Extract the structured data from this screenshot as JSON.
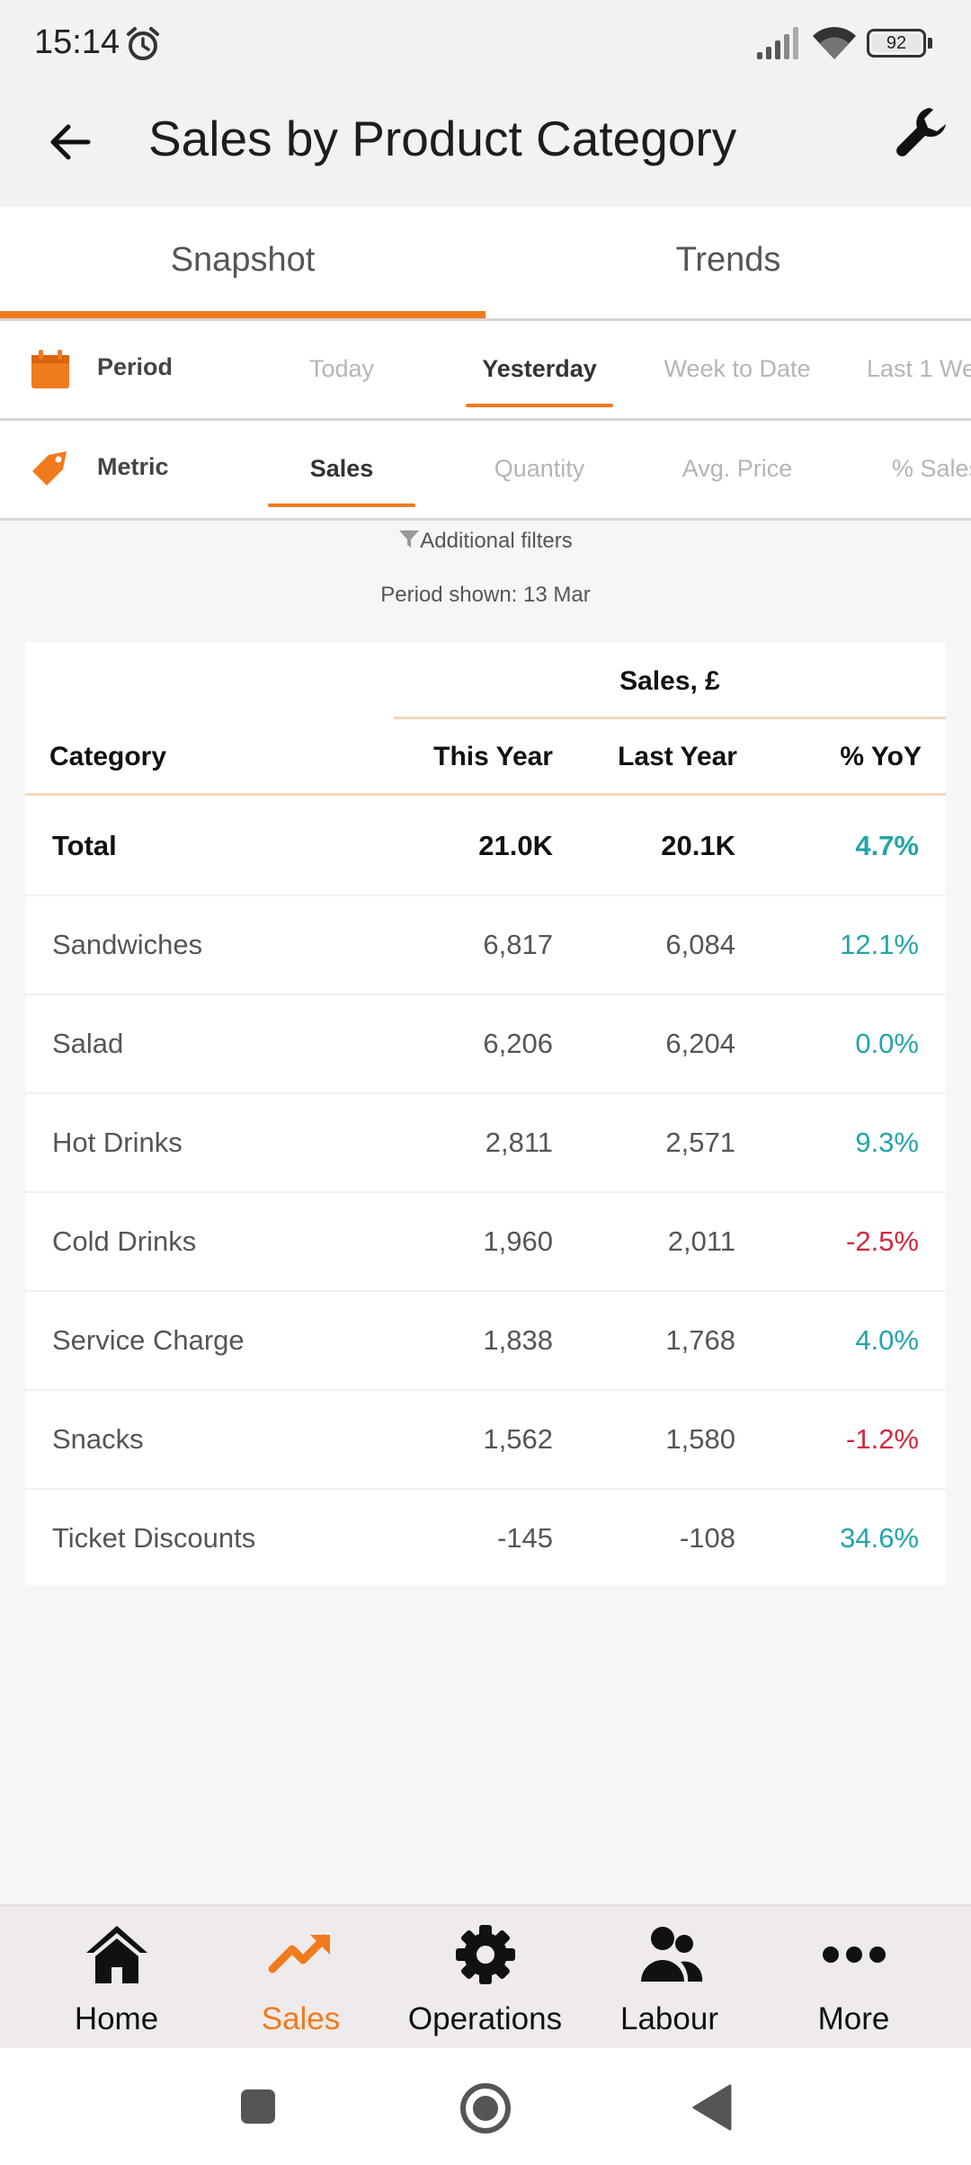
{
  "status_bar": {
    "time": "15:14",
    "battery": "92"
  },
  "app_bar": {
    "title": "Sales by Product Category"
  },
  "tabs": [
    {
      "label": "Snapshot",
      "active": true
    },
    {
      "label": "Trends",
      "active": false
    }
  ],
  "period_filter": {
    "label": "Period",
    "options": [
      "Today",
      "Yesterday",
      "Week to Date",
      "Last 1 We"
    ],
    "selected": "Yesterday"
  },
  "metric_filter": {
    "label": "Metric",
    "options": [
      "Sales",
      "Quantity",
      "Avg. Price",
      "% Sales"
    ],
    "selected": "Sales"
  },
  "additional_filters": "Additional filters",
  "period_shown": "Period shown: 13 Mar",
  "table": {
    "group_header": "Sales, £",
    "columns": [
      "Category",
      "This Year",
      "Last Year",
      "% YoY"
    ],
    "rows": [
      {
        "category": "Total",
        "this_year": "21.0K",
        "last_year": "20.1K",
        "yoy": "4.7%",
        "trend": "up"
      },
      {
        "category": "Sandwiches",
        "this_year": "6,817",
        "last_year": "6,084",
        "yoy": "12.1%",
        "trend": "up"
      },
      {
        "category": "Salad",
        "this_year": "6,206",
        "last_year": "6,204",
        "yoy": "0.0%",
        "trend": "up"
      },
      {
        "category": "Hot Drinks",
        "this_year": "2,811",
        "last_year": "2,571",
        "yoy": "9.3%",
        "trend": "up"
      },
      {
        "category": "Cold Drinks",
        "this_year": "1,960",
        "last_year": "2,011",
        "yoy": "-2.5%",
        "trend": "down"
      },
      {
        "category": "Service Charge",
        "this_year": "1,838",
        "last_year": "1,768",
        "yoy": "4.0%",
        "trend": "up"
      },
      {
        "category": "Snacks",
        "this_year": "1,562",
        "last_year": "1,580",
        "yoy": "-1.2%",
        "trend": "down"
      },
      {
        "category": "Ticket Discounts",
        "this_year": "-145",
        "last_year": "-108",
        "yoy": "34.6%",
        "trend": "up"
      }
    ]
  },
  "bottom_nav": [
    {
      "label": "Home",
      "icon": "home-icon",
      "active": false
    },
    {
      "label": "Sales",
      "icon": "trending-up-icon",
      "active": true
    },
    {
      "label": "Operations",
      "icon": "gear-icon",
      "active": false
    },
    {
      "label": "Labour",
      "icon": "people-icon",
      "active": false
    },
    {
      "label": "More",
      "icon": "more-dots-icon",
      "active": false
    }
  ],
  "colors": {
    "accent": "#f07b1d",
    "positive": "#22a4a8",
    "negative": "#d5263b"
  }
}
